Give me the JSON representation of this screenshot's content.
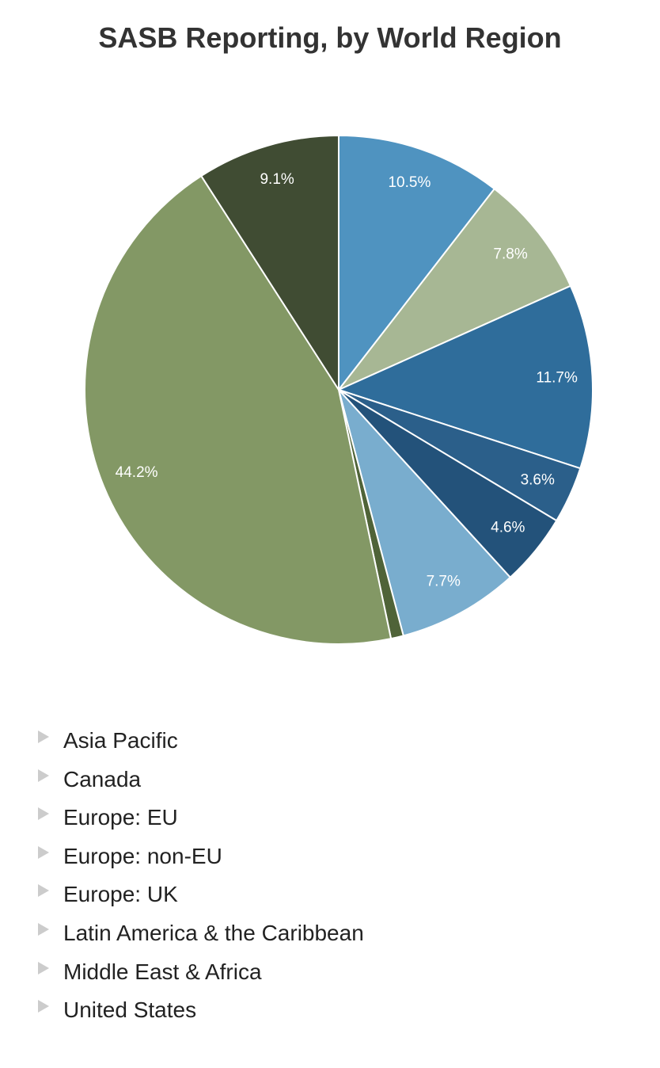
{
  "chart_data": {
    "type": "pie",
    "title": "SASB Reporting, by World Region",
    "categories": [
      "Asia Pacific",
      "Canada",
      "Europe: EU",
      "Europe: non-EU",
      "Europe: UK",
      "Latin America & the Caribbean",
      "Middle East & Africa",
      "United States",
      null
    ],
    "values": [
      10.5,
      7.8,
      11.7,
      3.6,
      4.6,
      7.7,
      0.8,
      44.2,
      9.1
    ],
    "value_labels": [
      "10.5%",
      "7.8%",
      "11.7%",
      "3.6%",
      "4.6%",
      "7.7%",
      null,
      "44.2%",
      "9.1%"
    ],
    "colors": [
      "#4f93c0",
      "#a7b794",
      "#2f6d9b",
      "#2b5f8a",
      "#23527a",
      "#79adce",
      "#4f6338",
      "#839865",
      "#404c33"
    ]
  }
}
